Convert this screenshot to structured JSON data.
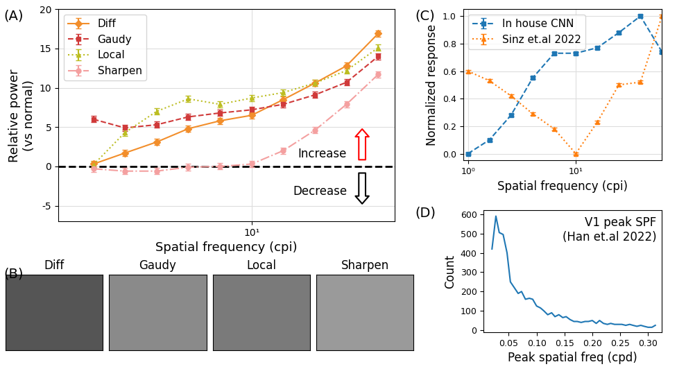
{
  "chart_data": [
    {
      "type": "line",
      "panel": "(A)",
      "xlabel": "Spatial frequency (cpi)",
      "ylabel": "Relative power\n(vs normal)",
      "log": "x",
      "grid": true,
      "legend": "upper left",
      "xlim": [
        0.6,
        80
      ],
      "xticks": [
        {
          "value": 10,
          "label": "10¹"
        }
      ],
      "ylim": [
        -7,
        20
      ],
      "yticks": [
        -5,
        0,
        5,
        10,
        15,
        20
      ],
      "reference_line": 0,
      "annotations": [
        "Increase",
        "Decrease"
      ],
      "x": [
        1,
        1.58,
        2.51,
        3.98,
        6.31,
        10,
        15.85,
        25.12,
        39.81,
        63.1
      ],
      "series": [
        {
          "name": "Diff",
          "color": "#f28e2b",
          "marker": "diamond",
          "line_style": "solid",
          "values": [
            0.3,
            1.7,
            3.1,
            4.8,
            5.8,
            6.5,
            8.5,
            10.6,
            12.8,
            16.9
          ],
          "errors": [
            0.4,
            0.4,
            0.4,
            0.4,
            0.4,
            0.4,
            0.4,
            0.4,
            0.4,
            0.4
          ]
        },
        {
          "name": "Gaudy",
          "color": "#d03a3a",
          "marker": "square",
          "line_style": "dashed",
          "values": [
            6.0,
            4.9,
            5.3,
            6.3,
            6.8,
            7.2,
            7.9,
            9.1,
            10.7,
            14.0
          ],
          "errors": [
            0.4,
            0.4,
            0.4,
            0.4,
            0.4,
            0.4,
            0.4,
            0.4,
            0.4,
            0.4
          ]
        },
        {
          "name": "Local",
          "color": "#bcbd22",
          "marker": "triangle",
          "line_style": "dotted",
          "values": [
            0.2,
            4.3,
            7.0,
            8.6,
            7.9,
            8.7,
            9.4,
            10.6,
            12.2,
            15.1
          ],
          "errors": [
            0.4,
            0.4,
            0.4,
            0.4,
            0.4,
            0.4,
            0.4,
            0.4,
            0.4,
            0.4
          ]
        },
        {
          "name": "Sharpen",
          "color": "#f4a0a0",
          "marker": "circle",
          "line_style": "dashdot",
          "values": [
            -0.3,
            -0.6,
            -0.6,
            -0.1,
            0.0,
            0.3,
            2.0,
            4.6,
            7.9,
            11.7
          ],
          "errors": [
            0.4,
            0.4,
            0.4,
            0.4,
            0.4,
            0.4,
            0.4,
            0.4,
            0.4,
            0.4
          ]
        }
      ]
    },
    {
      "type": "image",
      "panel": "(B)",
      "titles": [
        "Diff",
        "Gaudy",
        "Local",
        "Sharpen"
      ]
    },
    {
      "type": "line",
      "panel": "(C)",
      "xlabel": "Spatial frequency (cpi)",
      "ylabel": "Normalized response",
      "log": "x",
      "grid": true,
      "legend": "upper left",
      "xlim": [
        0.9,
        63.1
      ],
      "xticks": [
        {
          "value": 1,
          "label": "10⁰"
        },
        {
          "value": 10,
          "label": "10¹"
        }
      ],
      "ylim": [
        -0.05,
        1.05
      ],
      "yticks": [
        {
          "value": 0,
          "label": "0.0"
        },
        0.2,
        0.4,
        0.6,
        0.8,
        {
          "value": 1,
          "label": "1.0"
        }
      ],
      "x": [
        1,
        1.58,
        2.51,
        3.98,
        6.31,
        10,
        15.85,
        25.12,
        39.81,
        63.1
      ],
      "series": [
        {
          "name": "In house CNN",
          "color": "#1f77b4",
          "marker": "square",
          "line_style": "dashed",
          "values": [
            0.0,
            0.1,
            0.28,
            0.55,
            0.73,
            0.73,
            0.77,
            0.88,
            1.0,
            0.74
          ],
          "errors": [
            0.01,
            0.01,
            0.01,
            0.01,
            0.01,
            0.01,
            0.01,
            0.01,
            0.01,
            0.01
          ]
        },
        {
          "name": "Sinz et.al 2022",
          "color": "#ff7f0e",
          "marker": "triangle",
          "line_style": "dotted",
          "values": [
            0.6,
            0.53,
            0.42,
            0.29,
            0.18,
            0.0,
            0.23,
            0.5,
            0.52,
            1.0
          ],
          "errors": [
            0.01,
            0.01,
            0.01,
            0.01,
            0.01,
            0.01,
            0.01,
            0.01,
            0.01,
            0.01
          ]
        }
      ]
    },
    {
      "type": "line",
      "panel": "(D)",
      "xlabel": "Peak spatial freq (cpd)",
      "ylabel": "Count",
      "annotations": [
        "V1 peak SPF\n(Han et.al 2022)"
      ],
      "grid": false,
      "xlim": [
        0.005,
        0.325
      ],
      "xticks": [
        0.05,
        {
          "value": 0.1,
          "label": "0.10"
        },
        0.15,
        {
          "value": 0.2,
          "label": "0.20"
        },
        0.25,
        {
          "value": 0.3,
          "label": "0.30"
        }
      ],
      "ylim": [
        -10,
        620
      ],
      "yticks": [
        0,
        100,
        200,
        300,
        400,
        500,
        600
      ],
      "x": [
        0.02,
        0.027,
        0.033,
        0.04,
        0.047,
        0.053,
        0.06,
        0.067,
        0.073,
        0.08,
        0.087,
        0.093,
        0.1,
        0.107,
        0.113,
        0.12,
        0.127,
        0.133,
        0.14,
        0.147,
        0.153,
        0.16,
        0.167,
        0.173,
        0.18,
        0.187,
        0.193,
        0.2,
        0.207,
        0.213,
        0.22,
        0.227,
        0.233,
        0.24,
        0.247,
        0.253,
        0.26,
        0.267,
        0.273,
        0.28,
        0.287,
        0.293,
        0.3,
        0.307,
        0.313
      ],
      "series": [
        {
          "color": "#1f77b4",
          "line_style": "solid",
          "values": [
            420,
            590,
            505,
            495,
            400,
            250,
            220,
            190,
            200,
            160,
            165,
            160,
            125,
            115,
            100,
            80,
            90,
            70,
            80,
            65,
            70,
            55,
            45,
            45,
            40,
            45,
            45,
            50,
            35,
            50,
            35,
            30,
            35,
            30,
            30,
            30,
            25,
            30,
            25,
            20,
            25,
            20,
            15,
            15,
            25
          ]
        }
      ]
    }
  ]
}
